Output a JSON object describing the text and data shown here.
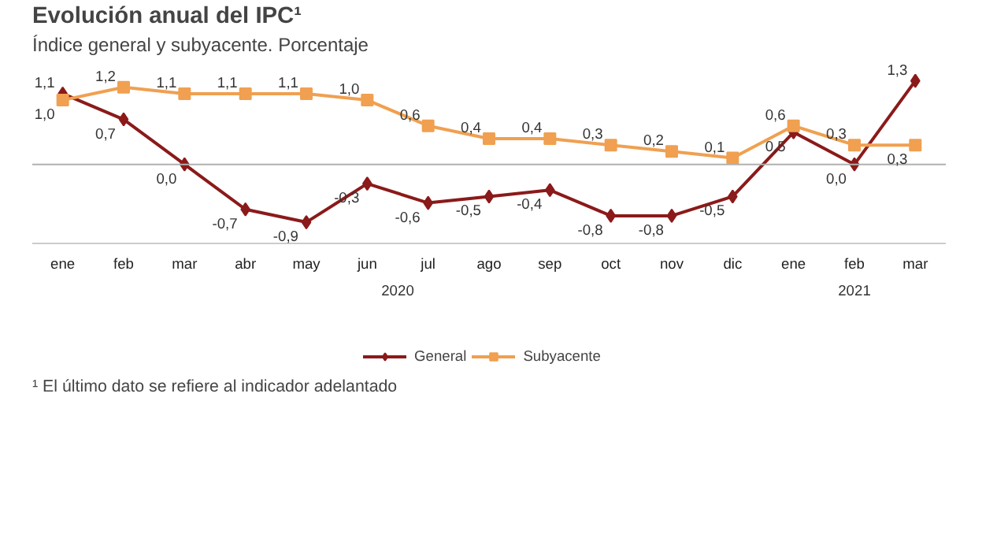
{
  "chart_data": {
    "type": "line",
    "title": "Evolución anual del IPC¹",
    "subtitle": "Índice general y subyacente. Porcentaje",
    "categories": [
      "ene",
      "feb",
      "mar",
      "abr",
      "may",
      "jun",
      "jul",
      "ago",
      "sep",
      "oct",
      "nov",
      "dic",
      "ene",
      "feb",
      "mar"
    ],
    "series": [
      {
        "name": "General",
        "color": "#8b1a1a",
        "marker": "diamond",
        "values": [
          1.1,
          0.7,
          0.0,
          -0.7,
          -0.9,
          -0.3,
          -0.6,
          -0.5,
          -0.4,
          -0.8,
          -0.8,
          -0.5,
          0.5,
          0.0,
          1.3
        ],
        "value_labels": [
          "1,1",
          "0,7",
          "0,0",
          "-0,7",
          "-0,9",
          "-0,3",
          "-0,6",
          "-0,5",
          "-0,4",
          "-0,8",
          "-0,8",
          "-0,5",
          "0,5",
          "0,0",
          "1,3"
        ]
      },
      {
        "name": "Subyacente",
        "color": "#f0a050",
        "marker": "square",
        "values": [
          1.0,
          1.2,
          1.1,
          1.1,
          1.1,
          1.0,
          0.6,
          0.4,
          0.4,
          0.3,
          0.2,
          0.1,
          0.6,
          0.3,
          0.3
        ],
        "value_labels": [
          "1,0",
          "1,2",
          "1,1",
          "1,1",
          "1,1",
          "1,0",
          "0,6",
          "0,4",
          "0,4",
          "0,3",
          "0,2",
          "0,1",
          "0,6",
          "0,3",
          "0,3"
        ]
      }
    ],
    "ref_lines": [
      {
        "axis": "y",
        "value": 0,
        "color": "#b0b0b0"
      }
    ],
    "annotations": [
      "2020",
      "2021",
      "¹ El último dato se refiere al indicador adelantado"
    ],
    "tick_labels": "x",
    "grid": false,
    "legend": "bottom"
  }
}
